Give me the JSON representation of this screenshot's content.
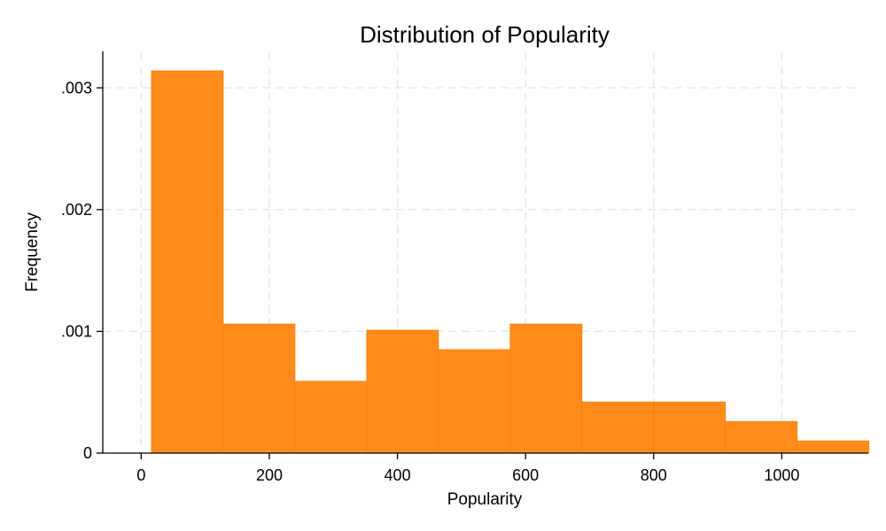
{
  "chart_data": {
    "type": "histogram",
    "title": "Distribution of Popularity",
    "xlabel": "Popularity",
    "ylabel": "Frequency",
    "xlim": [
      -60,
      1135
    ],
    "ylim": [
      0,
      0.0033
    ],
    "x_ticks": [
      0,
      200,
      400,
      600,
      800,
      1000
    ],
    "x_tick_labels": [
      "0",
      "200",
      "400",
      "600",
      "800",
      "1000"
    ],
    "y_ticks": [
      0,
      0.001,
      0.002,
      0.003
    ],
    "y_tick_labels": [
      "0",
      ".001",
      ".002",
      ".003"
    ],
    "bin_edges": [
      16,
      128,
      240,
      352,
      464,
      576,
      688,
      800,
      912,
      1024,
      1136
    ],
    "values": [
      0.00314,
      0.00106,
      0.00059,
      0.00101,
      0.00085,
      0.00106,
      0.00042,
      0.00042,
      0.00026,
      0.0001
    ],
    "bar_color": "#ff8c1a",
    "grid": true,
    "legend": false
  }
}
